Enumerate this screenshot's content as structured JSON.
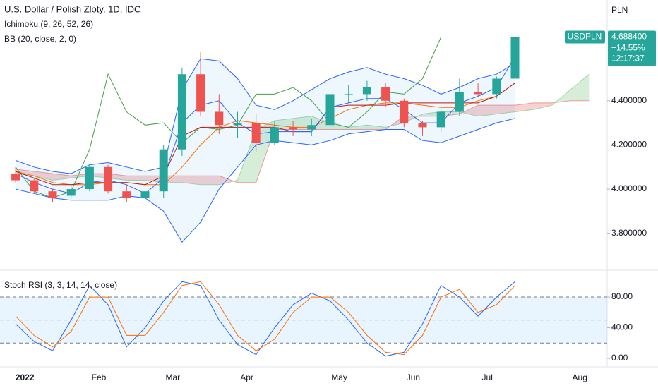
{
  "chart_data": [
    {
      "type": "candlestick",
      "title": "U.S. Dollar / Polish Zloty, 1D, IDC",
      "axis_label": "PLN",
      "categories": [
        null,
        "2022",
        null,
        null,
        null,
        "Feb",
        null,
        null,
        null,
        "Mar",
        null,
        null,
        null,
        "Apr",
        null,
        null,
        null,
        null,
        "May",
        null,
        null,
        null,
        "Jun",
        null,
        null,
        null,
        "Jul",
        null,
        null,
        null,
        null,
        "Aug"
      ],
      "open": [
        4.07,
        4.04,
        3.99,
        3.97,
        4.0,
        4.1,
        3.99,
        3.96,
        3.99,
        4.18,
        4.52,
        4.35,
        4.29,
        4.3,
        4.21,
        4.28,
        4.27,
        4.29,
        4.43,
        4.43,
        4.46,
        4.4,
        4.3,
        4.28,
        4.35,
        4.44,
        4.43,
        4.5,
        null,
        null,
        null,
        null
      ],
      "high": [
        4.1,
        4.05,
        4.0,
        4.02,
        4.11,
        4.11,
        4.02,
        4.02,
        4.2,
        4.55,
        4.62,
        4.43,
        4.35,
        4.34,
        4.31,
        4.31,
        4.32,
        4.46,
        4.47,
        4.49,
        4.48,
        4.41,
        4.31,
        4.36,
        4.5,
        4.48,
        4.51,
        4.72,
        null,
        null,
        null,
        null
      ],
      "low": [
        4.03,
        3.98,
        3.94,
        3.96,
        3.99,
        3.98,
        3.94,
        3.93,
        3.96,
        4.15,
        4.33,
        4.25,
        4.23,
        4.17,
        4.2,
        4.24,
        4.24,
        4.27,
        4.39,
        4.4,
        4.37,
        4.28,
        4.24,
        4.26,
        4.33,
        4.42,
        4.41,
        4.49,
        null,
        null,
        null,
        null
      ],
      "close": [
        4.04,
        3.99,
        3.96,
        4.0,
        4.1,
        3.99,
        3.96,
        3.99,
        4.18,
        4.52,
        4.35,
        4.29,
        4.3,
        4.21,
        4.28,
        4.27,
        4.29,
        4.43,
        4.43,
        4.46,
        4.4,
        4.3,
        4.28,
        4.35,
        4.44,
        4.43,
        4.5,
        4.6884,
        null,
        null,
        null,
        null
      ],
      "up_color": "#26a69a",
      "down_color": "#ef5350",
      "ylim": [
        3.633,
        4.856
      ],
      "yticks": [
        {
          "value": 3.8,
          "label": "3.800000"
        },
        {
          "value": 4.0,
          "label": "4.000000"
        },
        {
          "value": 4.2,
          "label": "4.200000"
        },
        {
          "value": 4.4,
          "label": "4.400000"
        }
      ],
      "symbol": "USDPLN",
      "last_price": {
        "value": 4.6884,
        "label": "4.688400"
      },
      "change": {
        "value": 14.55,
        "label": "+14.55%"
      },
      "countdown": "12:17:37",
      "ichimoku": {
        "label": "Ichimoku (9, 26, 52, 26)",
        "conversion": [
          4.07,
          4.03,
          4.0,
          3.98,
          4.03,
          4.04,
          4.02,
          3.98,
          4.05,
          4.3,
          4.38,
          4.4,
          4.3,
          4.25,
          4.26,
          4.26,
          4.26,
          4.37,
          4.39,
          4.41,
          4.41,
          4.36,
          4.3,
          4.3,
          4.39,
          4.42,
          4.46,
          4.6,
          null,
          null,
          null,
          null
        ],
        "base": [
          4.08,
          4.05,
          4.02,
          4.02,
          4.03,
          4.03,
          4.03,
          4.02,
          4.06,
          4.24,
          4.28,
          4.28,
          4.28,
          4.28,
          4.28,
          4.26,
          4.26,
          4.37,
          4.38,
          4.38,
          4.38,
          4.39,
          4.39,
          4.39,
          4.39,
          4.39,
          4.42,
          4.48,
          null,
          null,
          null,
          null
        ],
        "lagging": [
          4.1,
          3.99,
          3.96,
          3.99,
          4.18,
          4.52,
          4.35,
          4.29,
          4.3,
          4.21,
          4.28,
          4.27,
          4.29,
          4.43,
          4.43,
          4.46,
          4.4,
          4.3,
          4.28,
          4.35,
          4.44,
          4.43,
          4.5,
          4.6884,
          null,
          null,
          null,
          null,
          null,
          null,
          null,
          null
        ],
        "span_a": [
          4.07,
          4.06,
          4.04,
          4.05,
          4.06,
          4.05,
          4.04,
          4.04,
          4.03,
          4.03,
          4.02,
          4.02,
          4.04,
          4.27,
          4.31,
          4.32,
          4.33,
          4.3,
          4.28,
          4.29,
          4.28,
          4.3,
          4.34,
          4.35,
          4.35,
          4.33,
          4.34,
          4.35,
          4.36,
          4.38,
          4.45,
          4.52
        ],
        "span_b": [
          4.09,
          4.08,
          4.07,
          4.06,
          4.07,
          4.07,
          4.06,
          4.06,
          4.06,
          4.06,
          4.06,
          4.06,
          4.03,
          4.03,
          4.27,
          4.27,
          4.27,
          4.27,
          4.27,
          4.27,
          4.27,
          4.33,
          4.33,
          4.33,
          4.34,
          4.38,
          4.38,
          4.38,
          4.39,
          4.39,
          4.4,
          4.4
        ],
        "colors": {
          "conversion": "#2962ff",
          "base": "#b71c1c",
          "lagging": "#43a047",
          "span_a": "#a5d6a7",
          "span_b": "#ef9a9a"
        }
      },
      "bollinger": {
        "label": "BB (20, close, 2, 0)",
        "upper": [
          4.13,
          4.1,
          4.08,
          4.07,
          4.11,
          4.12,
          4.1,
          4.08,
          4.1,
          4.45,
          4.59,
          4.58,
          4.5,
          4.38,
          4.36,
          4.4,
          4.45,
          4.5,
          4.53,
          4.55,
          4.52,
          4.5,
          4.47,
          4.43,
          4.46,
          4.5,
          4.52,
          4.57,
          null,
          null,
          null,
          null
        ],
        "basis": [
          4.08,
          4.06,
          4.03,
          4.02,
          4.02,
          4.03,
          4.03,
          4.02,
          4.02,
          4.1,
          4.2,
          4.28,
          4.31,
          4.3,
          4.29,
          4.28,
          4.28,
          4.32,
          4.36,
          4.38,
          4.39,
          4.39,
          4.38,
          4.37,
          4.37,
          4.4,
          4.42,
          4.48,
          null,
          null,
          null,
          null
        ],
        "lower": [
          4.0,
          3.98,
          3.96,
          3.95,
          3.95,
          3.95,
          3.97,
          3.96,
          3.9,
          3.76,
          3.85,
          4.0,
          4.1,
          4.2,
          4.22,
          4.21,
          4.2,
          4.22,
          4.25,
          4.26,
          4.27,
          4.27,
          4.22,
          4.21,
          4.24,
          4.27,
          4.3,
          4.32,
          null,
          null,
          null,
          null
        ],
        "colors": {
          "upper": "#2962ff",
          "basis": "#ff6d00",
          "lower": "#2962ff",
          "fill": "#2196f3"
        }
      }
    },
    {
      "type": "line",
      "title": "Stoch RSI (3, 3, 14, 14, close)",
      "series": [
        {
          "color": "#2962ff",
          "values": [
            45,
            22,
            10,
            50,
            95,
            70,
            15,
            40,
            75,
            100,
            95,
            50,
            18,
            5,
            40,
            70,
            85,
            75,
            50,
            20,
            3,
            8,
            45,
            95,
            80,
            55,
            80,
            100,
            null,
            null,
            null,
            null
          ]
        },
        {
          "color": "#ff6d00",
          "values": [
            55,
            30,
            15,
            35,
            80,
            80,
            30,
            30,
            60,
            95,
            100,
            70,
            30,
            10,
            25,
            60,
            80,
            80,
            60,
            30,
            8,
            5,
            30,
            80,
            90,
            60,
            70,
            95,
            null,
            null,
            null,
            null
          ]
        }
      ],
      "ylim": [
        -11,
        115
      ],
      "yticks": [
        {
          "value": 0,
          "label": "0.00"
        },
        {
          "value": 40,
          "label": "40.00"
        },
        {
          "value": 80,
          "label": "80.00"
        }
      ],
      "levels": [
        20,
        50,
        80
      ]
    }
  ]
}
